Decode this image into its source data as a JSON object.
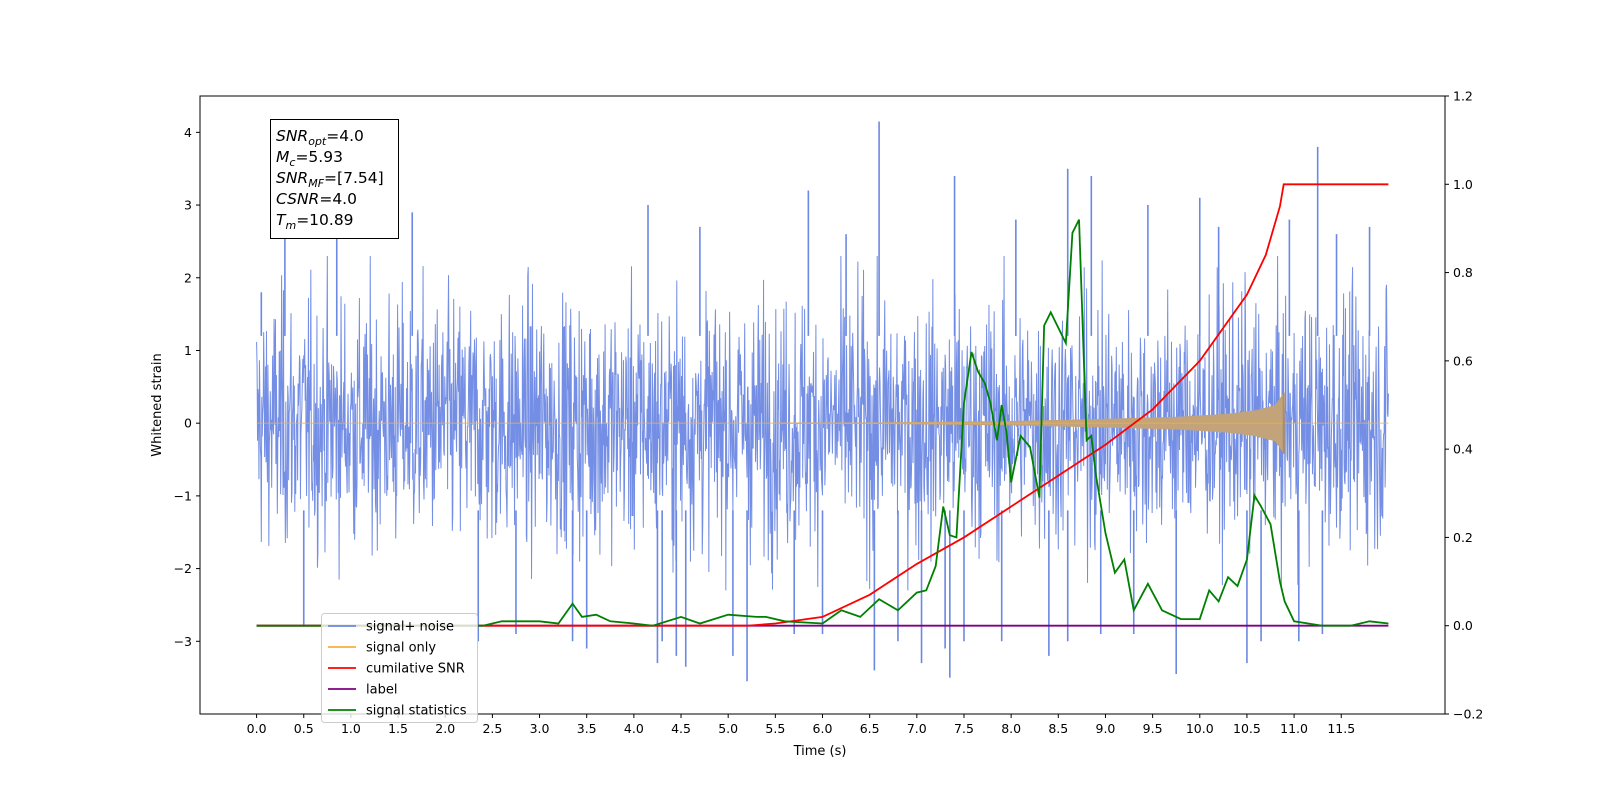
{
  "chart_data": {
    "type": "line",
    "xlabel": "Time (s)",
    "ylabel": "Whitened strain",
    "xlim": [
      -0.6,
      12.6
    ],
    "ylim": [
      -4.0,
      4.5
    ],
    "y2lim": [
      -0.2,
      1.2
    ],
    "x_ticks": [
      "0.0",
      "0.5",
      "1.0",
      "1.5",
      "2.0",
      "2.5",
      "3.0",
      "3.5",
      "4.0",
      "4.5",
      "5.0",
      "5.5",
      "6.0",
      "6.5",
      "7.0",
      "7.5",
      "8.0",
      "8.5",
      "9.0",
      "9.5",
      "10.0",
      "10.5",
      "11.0",
      "11.5"
    ],
    "y_ticks": [
      "−3",
      "−2",
      "−1",
      "0",
      "1",
      "2",
      "3",
      "4"
    ],
    "y2_ticks": [
      "−0.2",
      "0.0",
      "0.2",
      "0.4",
      "0.6",
      "0.8",
      "1.0",
      "1.2"
    ],
    "legend_position": "lower-left",
    "info_box": {
      "lines": [
        {
          "sym": "SNR",
          "sub": "opt",
          "value": "=4.0"
        },
        {
          "sym": "M",
          "sub": "c",
          "value": "=5.93"
        },
        {
          "sym": "SNR",
          "sub": "MF",
          "value": "=[7.54]"
        },
        {
          "sym": "CSNR",
          "sub": "",
          "value": "=4.0"
        },
        {
          "sym": "T",
          "sub": "m",
          "value": "=10.89"
        }
      ]
    },
    "colors": {
      "noise": "#6b88e3",
      "signal": "#f5b041",
      "cumulative": "#ff0000",
      "label": "#800080",
      "statistics": "#008000"
    },
    "series": [
      {
        "name": "signal+ noise",
        "axis": "left",
        "description_values": "white noise, typical range -2.5 to 2.5",
        "x_range": [
          0.0,
          12.0
        ],
        "envelope": [
          [
            0.0,
            2.3
          ],
          [
            12.0,
            2.3
          ]
        ],
        "spikes": [
          [
            0.05,
            1.8
          ],
          [
            0.3,
            2.6
          ],
          [
            0.5,
            -2.8
          ],
          [
            0.85,
            2.6
          ],
          [
            1.65,
            2.9
          ],
          [
            2.35,
            -3.0
          ],
          [
            2.75,
            -2.9
          ],
          [
            3.35,
            -3.0
          ],
          [
            3.5,
            -3.1
          ],
          [
            4.15,
            3.0
          ],
          [
            4.25,
            -3.3
          ],
          [
            4.3,
            -3.0
          ],
          [
            4.45,
            -3.2
          ],
          [
            4.55,
            -3.35
          ],
          [
            4.7,
            2.7
          ],
          [
            5.05,
            -3.2
          ],
          [
            5.2,
            -3.55
          ],
          [
            5.7,
            -2.9
          ],
          [
            5.85,
            3.2
          ],
          [
            6.0,
            -2.9
          ],
          [
            6.25,
            2.6
          ],
          [
            6.55,
            -3.4
          ],
          [
            6.6,
            4.15
          ],
          [
            6.8,
            -3.0
          ],
          [
            7.05,
            -3.3
          ],
          [
            7.3,
            -3.1
          ],
          [
            7.35,
            -3.5
          ],
          [
            7.4,
            3.4
          ],
          [
            7.5,
            -3.0
          ],
          [
            7.9,
            -3.0
          ],
          [
            8.05,
            2.8
          ],
          [
            8.4,
            -3.2
          ],
          [
            8.6,
            3.5
          ],
          [
            8.6,
            -3.0
          ],
          [
            8.85,
            3.4
          ],
          [
            8.95,
            -2.9
          ],
          [
            9.3,
            -2.9
          ],
          [
            9.45,
            3.0
          ],
          [
            9.75,
            -3.45
          ],
          [
            10.0,
            3.1
          ],
          [
            10.2,
            2.7
          ],
          [
            10.5,
            -3.3
          ],
          [
            10.65,
            -3.0
          ],
          [
            10.95,
            2.8
          ],
          [
            11.05,
            -3.0
          ],
          [
            11.25,
            3.8
          ],
          [
            11.3,
            -2.9
          ],
          [
            11.45,
            2.6
          ],
          [
            11.8,
            2.7
          ]
        ]
      },
      {
        "name": "signal only",
        "axis": "left",
        "x": [
          0.0,
          6.5,
          8.0,
          9.0,
          9.8,
          10.3,
          10.6,
          10.8,
          10.89
        ],
        "amplitude": [
          0.0,
          0.01,
          0.03,
          0.06,
          0.09,
          0.13,
          0.18,
          0.25,
          0.42
        ]
      },
      {
        "name": "cumilative SNR",
        "axis": "right",
        "x": [
          0.0,
          5.2,
          5.5,
          6.0,
          6.5,
          7.0,
          7.5,
          8.0,
          8.5,
          9.0,
          9.5,
          10.0,
          10.5,
          10.7,
          10.85,
          10.89,
          12.0
        ],
        "values": [
          0.0,
          0.0,
          0.005,
          0.02,
          0.07,
          0.14,
          0.2,
          0.27,
          0.34,
          0.41,
          0.49,
          0.6,
          0.75,
          0.84,
          0.95,
          1.0,
          1.0
        ]
      },
      {
        "name": "label",
        "axis": "right",
        "x": [
          0.0,
          12.0
        ],
        "values": [
          0.0,
          0.0
        ]
      },
      {
        "name": "signal statistics",
        "axis": "right",
        "x": [
          0.0,
          2.4,
          2.6,
          3.0,
          3.2,
          3.35,
          3.45,
          3.6,
          3.75,
          4.0,
          4.2,
          4.5,
          4.7,
          5.0,
          5.3,
          5.4,
          5.6,
          6.0,
          6.2,
          6.4,
          6.6,
          6.8,
          7.0,
          7.1,
          7.2,
          7.28,
          7.35,
          7.42,
          7.5,
          7.58,
          7.65,
          7.72,
          7.78,
          7.85,
          7.9,
          7.95,
          8.0,
          8.1,
          8.2,
          8.3,
          8.35,
          8.42,
          8.5,
          8.58,
          8.65,
          8.72,
          8.8,
          8.85,
          8.9,
          9.0,
          9.1,
          9.2,
          9.3,
          9.45,
          9.6,
          9.8,
          10.0,
          10.1,
          10.2,
          10.3,
          10.4,
          10.5,
          10.58,
          10.65,
          10.75,
          10.85,
          10.9,
          11.0,
          11.3,
          11.6,
          11.8,
          12.0
        ],
        "values": [
          0.0,
          0.0,
          0.01,
          0.01,
          0.005,
          0.05,
          0.02,
          0.025,
          0.01,
          0.005,
          0.0,
          0.02,
          0.005,
          0.025,
          0.02,
          0.02,
          0.01,
          0.005,
          0.035,
          0.02,
          0.06,
          0.035,
          0.075,
          0.08,
          0.135,
          0.27,
          0.205,
          0.2,
          0.505,
          0.62,
          0.575,
          0.55,
          0.505,
          0.42,
          0.5,
          0.44,
          0.325,
          0.43,
          0.405,
          0.29,
          0.68,
          0.71,
          0.675,
          0.64,
          0.89,
          0.92,
          0.42,
          0.43,
          0.34,
          0.21,
          0.12,
          0.15,
          0.035,
          0.095,
          0.035,
          0.015,
          0.015,
          0.08,
          0.055,
          0.11,
          0.09,
          0.15,
          0.295,
          0.27,
          0.23,
          0.1,
          0.055,
          0.01,
          0.0,
          0.0,
          0.01,
          0.005
        ]
      }
    ]
  }
}
